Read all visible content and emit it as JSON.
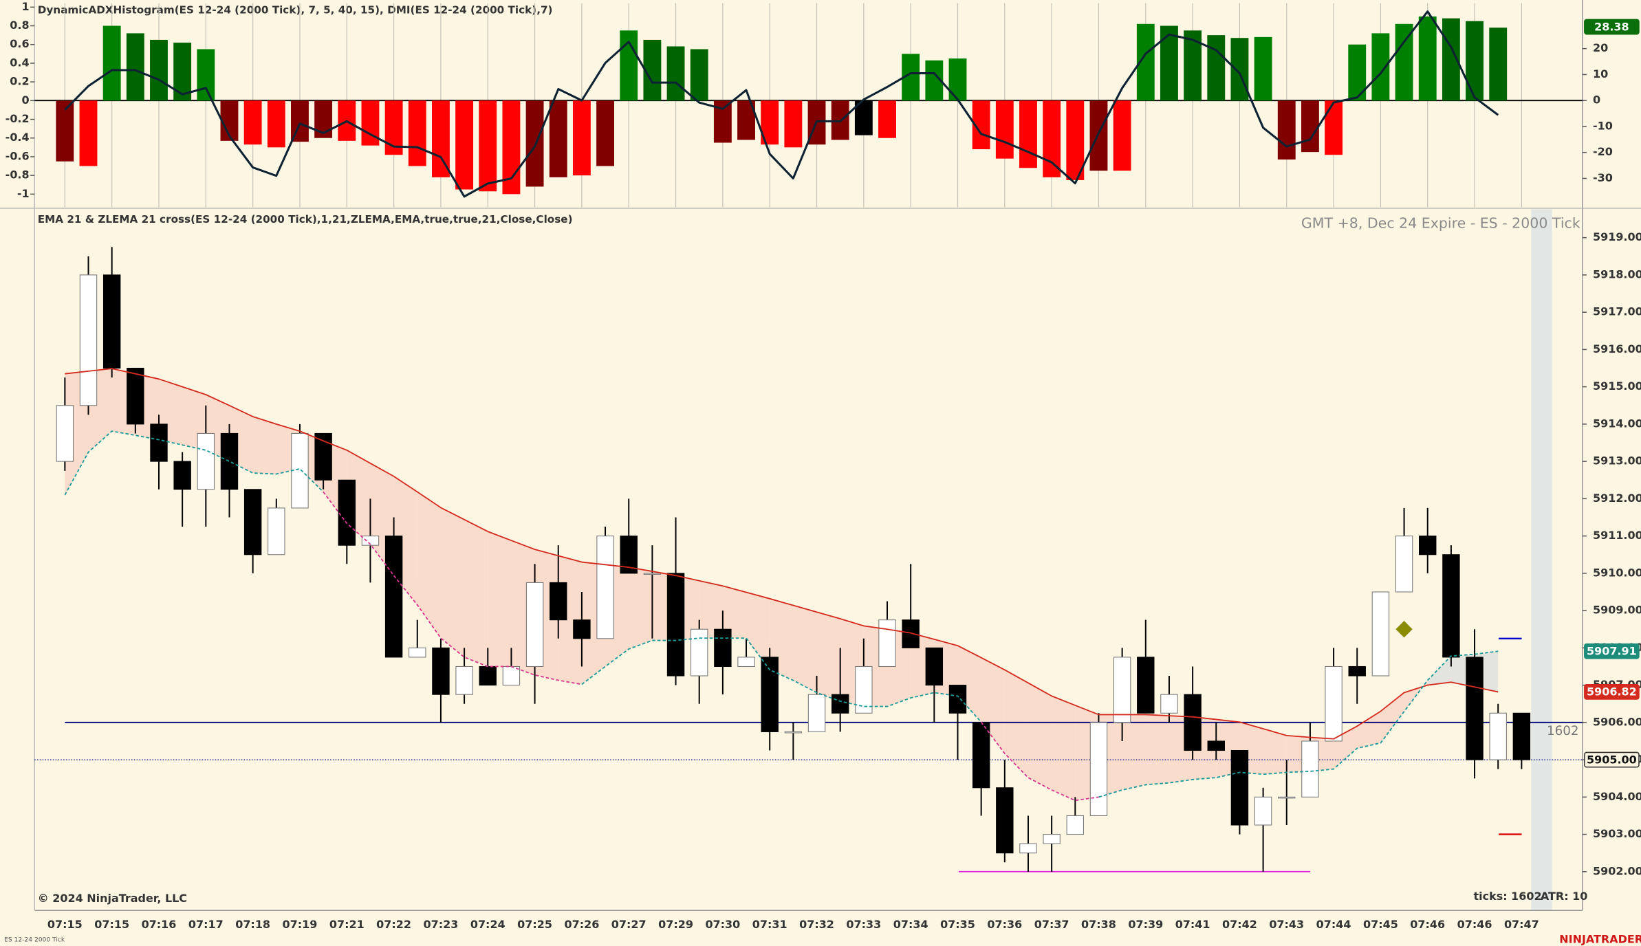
{
  "chart_data": [
    {
      "type": "bar",
      "title": "DynamicADXHistogram(ES 12-24 (2000 Tick), 7, 5, 40, 15), DMI(ES 12-24 (2000 Tick),7)",
      "values": [
        -0.65,
        -0.7,
        0.8,
        0.72,
        0.65,
        0.62,
        0.55,
        -0.43,
        -0.47,
        -0.5,
        -0.44,
        -0.4,
        -0.43,
        -0.48,
        -0.58,
        -0.7,
        -0.82,
        -0.95,
        -0.97,
        -1.0,
        -0.92,
        -0.82,
        -0.8,
        -0.7,
        0.75,
        0.65,
        0.58,
        0.55,
        -0.45,
        -0.42,
        -0.47,
        -0.5,
        -0.47,
        -0.42,
        -0.37,
        -0.4,
        0.5,
        0.43,
        0.45,
        -0.52,
        -0.62,
        -0.72,
        -0.82,
        -0.85,
        -0.75,
        -0.75,
        0.82,
        0.8,
        0.75,
        0.7,
        0.67,
        0.68,
        -0.63,
        -0.55,
        -0.58,
        0.6,
        0.72,
        0.82,
        0.9,
        0.88,
        0.85,
        0.78,
        null
      ],
      "colors": [
        "#800000",
        "#ff0000",
        "#008000",
        "#006400",
        "#006400",
        "#006400",
        "#008000",
        "#800000",
        "#ff0000",
        "#ff0000",
        "#800000",
        "#800000",
        "#ff0000",
        "#ff0000",
        "#ff0000",
        "#ff0000",
        "#ff0000",
        "#ff0000",
        "#ff0000",
        "#ff0000",
        "#800000",
        "#800000",
        "#ff0000",
        "#800000",
        "#008000",
        "#006400",
        "#006400",
        "#006400",
        "#800000",
        "#800000",
        "#ff0000",
        "#ff0000",
        "#800000",
        "#800000",
        "#000000",
        "#ff0000",
        "#008000",
        "#008000",
        "#008000",
        "#ff0000",
        "#ff0000",
        "#ff0000",
        "#ff0000",
        "#ff0000",
        "#800000",
        "#ff0000",
        "#008000",
        "#006400",
        "#006400",
        "#006400",
        "#006400",
        "#008000",
        "#800000",
        "#800000",
        "#ff0000",
        "#008000",
        "#008000",
        "#008000",
        "#008000",
        "#006400",
        "#006400",
        "#006400",
        null
      ],
      "series": [
        {
          "color": "#0d2233",
          "axis": "y2",
          "values": [
            -3.6,
            5.6,
            11.7,
            11.7,
            8,
            2.4,
            4.8,
            -13.7,
            -25.8,
            -29,
            -8.9,
            -12.5,
            -8,
            -13,
            -17.7,
            -18,
            -21.8,
            -37,
            -32,
            -30,
            -17.7,
            4.4,
            0,
            14.5,
            22.6,
            6.9,
            6.9,
            -0.8,
            -3.2,
            4,
            -20.6,
            -30,
            -8,
            -8,
            0.4,
            5.2,
            10.5,
            10.5,
            0.4,
            -12.9,
            -16,
            -19.8,
            -23.8,
            -31.9,
            -12.5,
            4.8,
            18,
            25.4,
            23.4,
            19.4,
            10.5,
            -10.5,
            -17.7,
            -15,
            -0.8,
            1.2,
            10.5,
            22.6,
            34.3,
            20.6,
            1.2,
            -5.6,
            null
          ]
        }
      ],
      "ylim": [
        -1.14,
        1.02
      ],
      "yticks": [
        1,
        0.8,
        0.6,
        0.4,
        0.2,
        0,
        -0.2,
        -0.4,
        -0.6,
        -0.8,
        -1
      ],
      "y2lim": [
        -41.1,
        36.7
      ],
      "y2ticks": [
        20,
        10,
        0,
        -10,
        -20,
        -30
      ],
      "y2_marker": {
        "value": 28.38,
        "color": "#0a6e0a"
      },
      "grid": true
    },
    {
      "type": "candlestick",
      "title": "EMA 21 & ZLEMA 21 cross(ES 12-24 (2000 Tick),1,21,ZLEMA,EMA,true,true,21,Close,Close)",
      "subtitle": "GMT +8, Dec 24 Expire - ES - 2000 Tick",
      "categories": [
        "07:15",
        null,
        "07:15",
        null,
        "07:16",
        null,
        "07:17",
        null,
        "07:18",
        null,
        "07:19",
        null,
        "07:21",
        null,
        "07:22",
        null,
        "07:23",
        null,
        "07:24",
        null,
        "07:25",
        null,
        "07:26",
        null,
        "07:27",
        null,
        "07:29",
        null,
        "07:30",
        null,
        "07:31",
        null,
        "07:32",
        null,
        "07:33",
        null,
        "07:34",
        null,
        "07:35",
        null,
        "07:36",
        null,
        "07:37",
        null,
        "07:38",
        null,
        "07:39",
        null,
        "07:41",
        null,
        "07:42",
        null,
        "07:43",
        null,
        "07:44",
        null,
        "07:45",
        null,
        "07:46",
        null,
        "07:46",
        null,
        "07:47"
      ],
      "open": [
        5913,
        5914.5,
        5918,
        5915.5,
        5914,
        5913,
        5912.25,
        5913.75,
        5912.25,
        5910.5,
        5911.75,
        5913.75,
        5912.5,
        5910.75,
        5911,
        5907.75,
        5908,
        5906.75,
        5907.5,
        5907,
        5907.5,
        5909.75,
        5908.75,
        5908.25,
        5911,
        5910,
        5910,
        5907.25,
        5908.5,
        5907.5,
        5907.75,
        5905.75,
        5905.75,
        5906.75,
        5906.25,
        5907.5,
        5908.75,
        5908,
        5907,
        5906,
        5904.25,
        5902.5,
        5902.75,
        5903,
        5903.5,
        5906,
        5907.75,
        5906.25,
        5906.75,
        5905.5,
        5905.25,
        5903.25,
        5904,
        5904,
        5905.5,
        5907.5,
        5907.25,
        5909.5,
        5911,
        5910.5,
        5907.75,
        5905,
        5906.25
      ],
      "high": [
        5915.25,
        5918.5,
        5918.75,
        5915.5,
        5914.25,
        5913.25,
        5914.5,
        5914,
        5912.25,
        5912,
        5914,
        5913.75,
        5912.5,
        5912,
        5911.5,
        5908.75,
        5908.25,
        5908,
        5908,
        5908,
        5910.25,
        5910.75,
        5909.5,
        5911.25,
        5912,
        5910.75,
        5911.5,
        5908.75,
        5909,
        5908.25,
        5908,
        5906,
        5907.25,
        5908,
        5908.25,
        5909.25,
        5910.25,
        5908,
        5907,
        5906,
        5905,
        5903.5,
        5903.5,
        5904,
        5906.25,
        5908,
        5908.75,
        5907.25,
        5907.5,
        5906,
        5905.25,
        5904.25,
        5905,
        5906,
        5908,
        5908,
        5909.5,
        5911.75,
        5911.75,
        5910.75,
        5908.5,
        5906.5,
        5906.25
      ],
      "low": [
        5912.75,
        5914.25,
        5915.25,
        5913.75,
        5912.25,
        5911.25,
        5911.25,
        5911.5,
        5910,
        5910.5,
        5911.75,
        5912.25,
        5910.25,
        5909.75,
        5907.75,
        5907.75,
        5906,
        5906.5,
        5907,
        5907,
        5906.5,
        5908.25,
        5907.5,
        5908.25,
        5910,
        5908.25,
        5907,
        5906.5,
        5906.75,
        5907.5,
        5905.25,
        5905,
        5905.75,
        5905.75,
        5906.25,
        5907.5,
        5908,
        5906,
        5905,
        5903.5,
        5902.25,
        5902,
        5902,
        5903,
        5903.5,
        5905.5,
        5906.25,
        5906,
        5905,
        5905,
        5903,
        5902,
        5903.25,
        5904,
        5905.5,
        5906.5,
        5907.25,
        5909.5,
        5910,
        5907.5,
        5904.5,
        5904.75,
        5904.75
      ],
      "close": [
        5914.5,
        5918,
        5915.5,
        5914,
        5913,
        5912.25,
        5913.75,
        5912.25,
        5910.5,
        5911.75,
        5913.75,
        5912.5,
        5910.75,
        5911,
        5907.75,
        5908,
        5906.75,
        5907.5,
        5907,
        5907.5,
        5909.75,
        5908.75,
        5908.25,
        5911,
        5910,
        5910,
        5907.25,
        5908.5,
        5907.5,
        5907.75,
        5905.75,
        5905.75,
        5906.75,
        5906.25,
        5907.5,
        5908.75,
        5908,
        5907,
        5906.25,
        5904.25,
        5902.5,
        5902.75,
        5903,
        5903.5,
        5906,
        5907.75,
        5906.25,
        5906.75,
        5905.25,
        5905.25,
        5903.25,
        5904,
        5904,
        5905.5,
        5907.5,
        5907.25,
        5909.5,
        5911,
        5910.5,
        5907.75,
        5905,
        5906.25,
        5905
      ],
      "up_color": "#ffffff",
      "down_color": "#000000",
      "series": [
        {
          "color": "#d42a1e",
          "style": "solid",
          "values": [
            5915.35,
            5915.42,
            5915.49,
            5915.35,
            5915.21,
            5915.0,
            5914.79,
            5914.5,
            5914.2,
            5914.0,
            5913.81,
            5913.55,
            5913.3,
            5912.95,
            5912.6,
            5912.18,
            5911.76,
            5911.44,
            5911.12,
            5910.88,
            5910.64,
            5910.47,
            5910.3,
            5910.23,
            5910.16,
            5910.05,
            5909.94,
            5909.8,
            5909.66,
            5909.49,
            5909.32,
            5909.14,
            5908.96,
            5908.78,
            5908.59,
            5908.5,
            5908.4,
            5908.23,
            5908.06,
            5907.74,
            5907.41,
            5907.06,
            5906.71,
            5906.46,
            5906.21,
            5906.21,
            5906.21,
            5906.18,
            5906.15,
            5906.08,
            5906.01,
            5905.83,
            5905.65,
            5905.6,
            5905.56,
            5905.9,
            5906.3,
            5906.8,
            5907.0,
            5907.08,
            5906.95,
            5906.82,
            null
          ]
        },
        {
          "color": "#1a9a9a",
          "style": "dashed",
          "values": [
            5912.1,
            5913.25,
            5913.81,
            5913.7,
            5913.58,
            5913.44,
            5913.3,
            5913.0,
            5912.69,
            5912.66,
            5912.8,
            5912.18,
            null,
            null,
            null,
            null,
            null,
            null,
            null,
            null,
            null,
            null,
            5907.02,
            5907.5,
            5907.97,
            5908.2,
            5908.2,
            5908.26,
            5908.26,
            5908.26,
            5907.41,
            5907.13,
            5906.8,
            5906.57,
            5906.43,
            5906.43,
            5906.66,
            5906.8,
            5906.71,
            5906.01,
            null,
            null,
            null,
            null,
            5904.0,
            5904.19,
            5904.33,
            5904.38,
            5904.47,
            5904.52,
            5904.66,
            5904.61,
            5904.66,
            5904.69,
            5904.75,
            5905.31,
            5905.45,
            5906.29,
            5907.13,
            5907.78,
            5907.83,
            5907.91,
            null
          ]
        },
        {
          "color": "#d6358f",
          "style": "dashed",
          "values": [
            null,
            null,
            null,
            null,
            null,
            null,
            null,
            null,
            null,
            null,
            null,
            5912.18,
            5911.34,
            5910.78,
            5909.94,
            5909.15,
            5908.26,
            5907.75,
            5907.5,
            5907.5,
            5907.27,
            5907.13,
            5907.02,
            null,
            null,
            null,
            null,
            null,
            null,
            null,
            null,
            null,
            null,
            null,
            null,
            null,
            null,
            null,
            null,
            5906.01,
            5905.17,
            5904.52,
            5904.19,
            5903.91,
            5904.0,
            null,
            null,
            null,
            null,
            null,
            null,
            null,
            null,
            null,
            null,
            null,
            null,
            null,
            null,
            null,
            null,
            null,
            null
          ]
        }
      ],
      "ylim": [
        5900.96,
        5919.76
      ],
      "yticks": [
        {
          "value": 5919,
          "label": "5919.00"
        },
        {
          "value": 5918,
          "label": "5918.00"
        },
        {
          "value": 5917,
          "label": "5917.00"
        },
        {
          "value": 5916,
          "label": "5916.00"
        },
        {
          "value": 5915,
          "label": "5915.00"
        },
        {
          "value": 5914,
          "label": "5914.00"
        },
        {
          "value": 5913,
          "label": "5913.00"
        },
        {
          "value": 5912,
          "label": "5912.00"
        },
        {
          "value": 5911,
          "label": "5911.00"
        },
        {
          "value": 5910,
          "label": "5910.00"
        },
        {
          "value": 5909,
          "label": "5909.00"
        },
        {
          "value": 5908,
          "label": "5908.00"
        },
        {
          "value": 5907,
          "label": "5907.00"
        },
        {
          "value": 5906,
          "label": "5906.00"
        },
        {
          "value": 5905,
          "label": "5905.00"
        },
        {
          "value": 5904,
          "label": "5904.00"
        },
        {
          "value": 5903,
          "label": "5903.00"
        },
        {
          "value": 5902,
          "label": "5902.00"
        }
      ],
      "price_line": {
        "value": 5905,
        "label": "5905.00"
      },
      "levels": [
        {
          "value": 5906,
          "color": "#000080"
        },
        {
          "value": 5902,
          "color": "#e020e0"
        }
      ],
      "target_levels": [
        {
          "value": 5908.25,
          "color": "#0000cc"
        },
        {
          "value": 5903,
          "color": "#dd0000"
        }
      ],
      "marker": {
        "value": 5908.5,
        "color": "#8b8b00"
      },
      "bar_counter": 1602,
      "copyright": "© 2024 NinjaTrader, LLC",
      "footer_ticks": "ticks: 1602",
      "footer_atr": "ATR: 10",
      "brand": "NINJATRADER",
      "instrument": "ES 12-24 2000 Tick"
    }
  ]
}
